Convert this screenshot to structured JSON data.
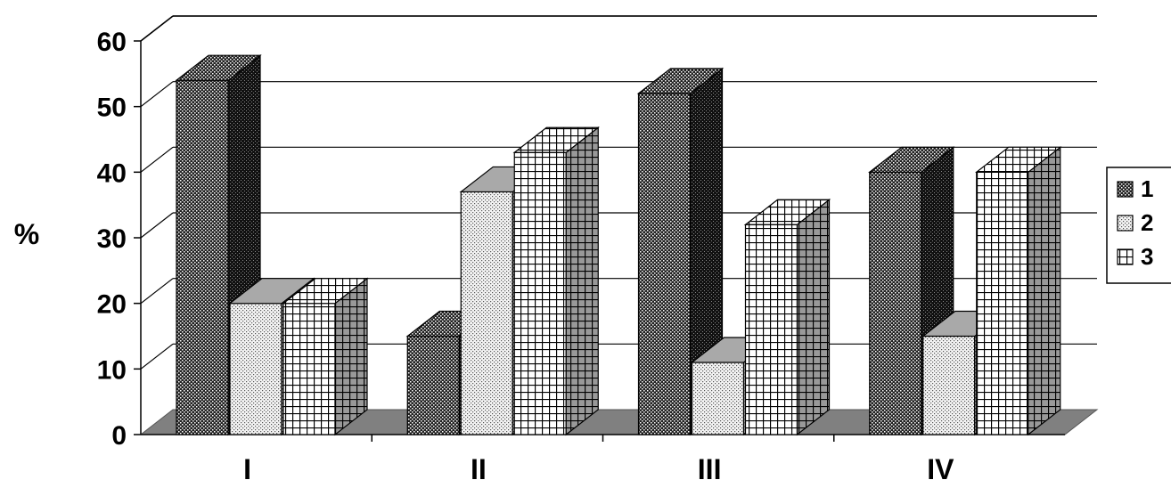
{
  "chart_data": {
    "type": "bar",
    "title": "",
    "xlabel": "",
    "ylabel": "%",
    "ylim": [
      0,
      60
    ],
    "yticks": [
      "0",
      "10",
      "20",
      "30",
      "40",
      "50",
      "60"
    ],
    "categories": [
      "I",
      "II",
      "III",
      "IV"
    ],
    "series": [
      {
        "name": "1",
        "values": [
          54,
          15,
          52,
          40
        ]
      },
      {
        "name": "2",
        "values": [
          20,
          37,
          11,
          15
        ]
      },
      {
        "name": "3",
        "values": [
          20,
          43,
          32,
          40
        ]
      }
    ],
    "grid": true,
    "legend_position": "right",
    "style": "3d-column"
  }
}
